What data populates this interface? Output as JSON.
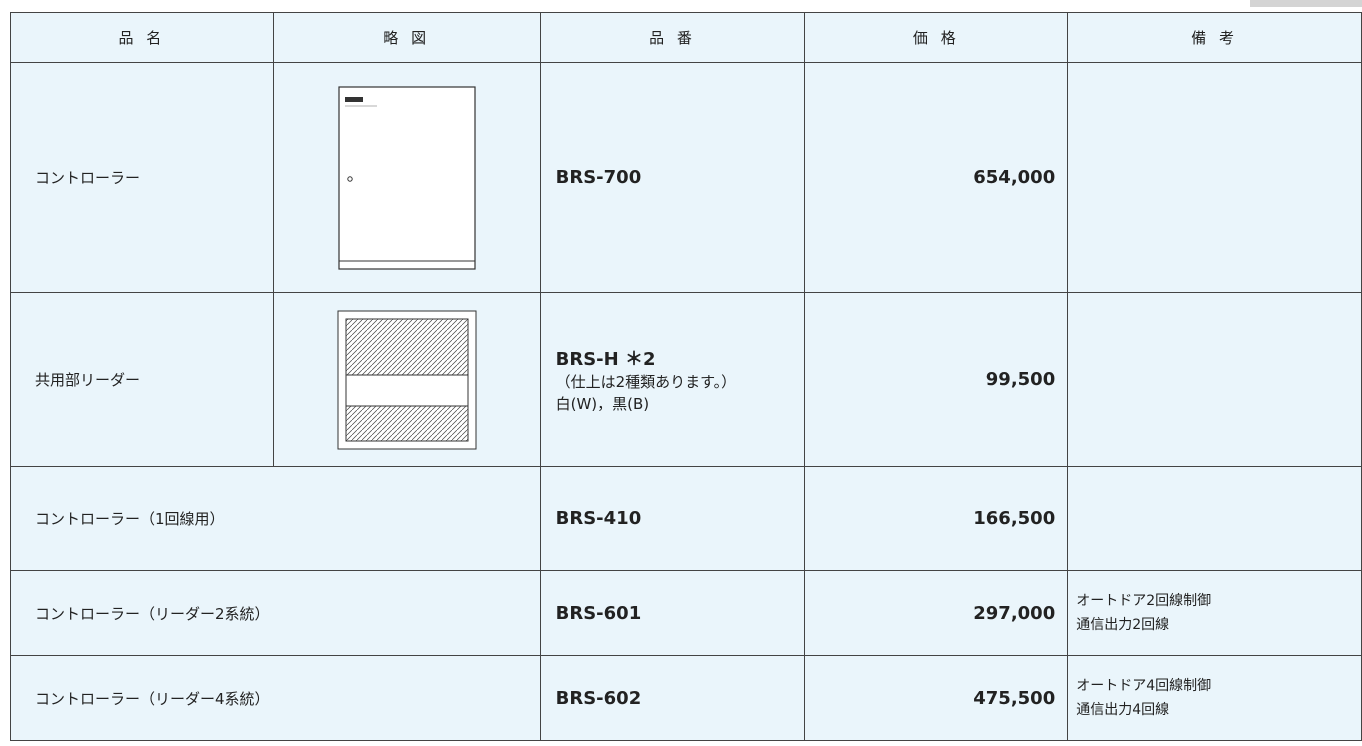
{
  "table": {
    "headers": [
      "品 名",
      "略 図",
      "品 番",
      "価 格",
      "備 考"
    ],
    "rows": [
      {
        "name": "コントローラー",
        "part_number": "BRS-700",
        "price": "654,000"
      },
      {
        "name": "共用部リーダー",
        "part_number": "BRS-H ＊2",
        "part_notes": [
          "（仕上は2種類あります。）",
          "白(W)，黒(B)"
        ],
        "price": "99,500"
      },
      {
        "name": "コントローラー（1回線用）",
        "part_number": "BRS-410",
        "price": "166,500"
      },
      {
        "name": "コントローラー（リーダー2系統）",
        "part_number": "BRS-601",
        "price": "297,000",
        "remarks": [
          "オートドア2回線制御",
          "通信出力2回線"
        ]
      },
      {
        "name": "コントローラー（リーダー4系統）",
        "part_number": "BRS-602",
        "price": "475,500",
        "remarks": [
          "オートドア4回線制御",
          "通信出力4回線"
        ]
      }
    ]
  }
}
